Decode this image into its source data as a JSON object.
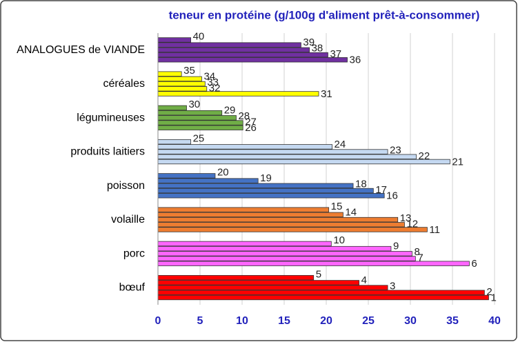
{
  "chart_data": {
    "type": "bar",
    "orientation": "horizontal",
    "title": "teneur en protéine (g/100g d'aliment prêt-à-consommer)",
    "xlim": [
      0,
      40
    ],
    "xticks": [
      0,
      5,
      10,
      15,
      20,
      25,
      30,
      35,
      40
    ],
    "grid": true,
    "groups": [
      {
        "name": "ANALOGUES de VIANDE",
        "color": "#7030a0",
        "labels": [
          40,
          39,
          38,
          37,
          36
        ],
        "values": [
          3.9,
          17.0,
          18.0,
          20.2,
          22.5
        ]
      },
      {
        "name": "céréales",
        "color": "#ffff00",
        "labels": [
          35,
          34,
          33,
          32,
          31
        ],
        "values": [
          2.8,
          5.2,
          5.6,
          5.8,
          19.1
        ]
      },
      {
        "name": "légumineuses",
        "color": "#70ad47",
        "labels": [
          30,
          29,
          28,
          27,
          26
        ],
        "values": [
          3.4,
          7.6,
          9.3,
          10.1,
          10.1
        ]
      },
      {
        "name": "produits laitiers",
        "color": "#c5d9f1",
        "labels": [
          25,
          24,
          23,
          22,
          21
        ],
        "values": [
          3.9,
          20.7,
          27.3,
          30.7,
          34.7
        ]
      },
      {
        "name": "poisson",
        "color": "#4472c4",
        "labels": [
          20,
          19,
          18,
          17,
          16
        ],
        "values": [
          6.8,
          11.9,
          23.2,
          25.6,
          26.9
        ]
      },
      {
        "name": "volaille",
        "color": "#ed7d31",
        "labels": [
          15,
          14,
          13,
          12,
          11
        ],
        "values": [
          20.3,
          22.0,
          28.5,
          29.3,
          32.0
        ]
      },
      {
        "name": "porc",
        "color": "#ff66ff",
        "labels": [
          10,
          9,
          8,
          7,
          6
        ],
        "values": [
          20.6,
          27.7,
          30.2,
          30.6,
          37.0
        ]
      },
      {
        "name": "bœuf",
        "color": "#ff0000",
        "labels": [
          5,
          4,
          3,
          2,
          1
        ],
        "values": [
          18.5,
          23.9,
          27.3,
          38.8,
          39.3
        ]
      }
    ]
  }
}
